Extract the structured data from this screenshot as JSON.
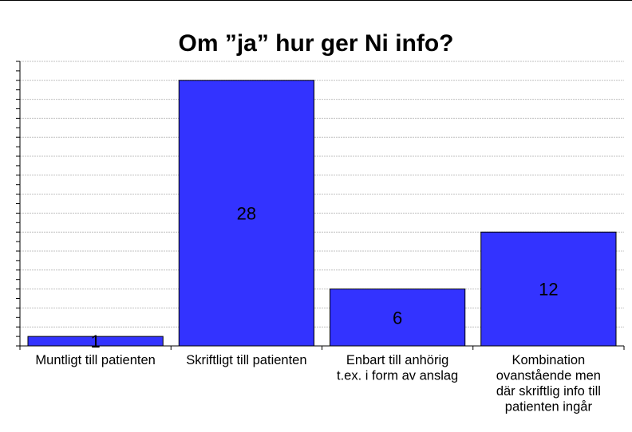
{
  "chart_data": {
    "type": "bar",
    "title": "Om ”ja” hur ger Ni info?",
    "categories": [
      [
        "Muntligt till patienten"
      ],
      [
        "Skriftligt till patienten"
      ],
      [
        "Enbart till anhörig",
        "t.ex. i form av anslag"
      ],
      [
        "Kombination",
        "ovanstående men",
        "där skriftlig info till",
        "patienten ingår"
      ]
    ],
    "values": [
      1,
      28,
      6,
      12
    ],
    "data_labels": [
      "1",
      "28",
      "6",
      "12"
    ],
    "ylim": [
      0,
      30
    ],
    "grid": true,
    "legend": "none",
    "xlabel": "",
    "ylabel": ""
  },
  "colors": {
    "bar": "#3333ff",
    "grid": "#c0c0c0",
    "axis": "#000000"
  }
}
